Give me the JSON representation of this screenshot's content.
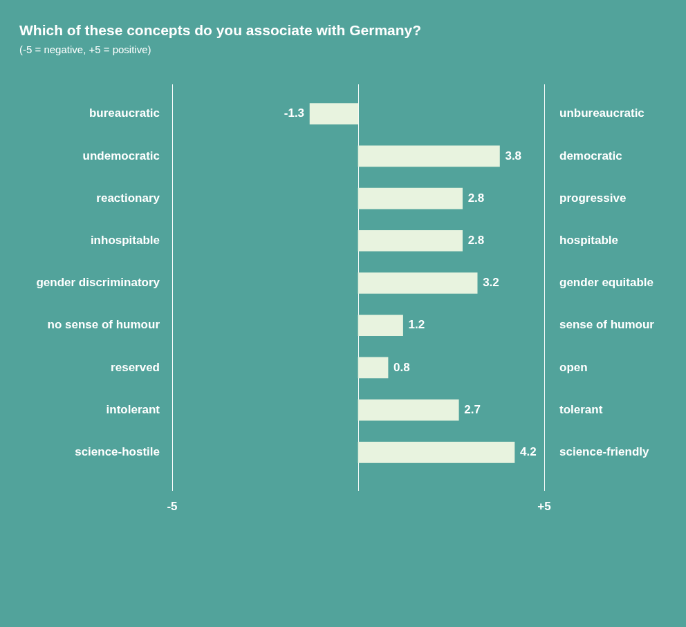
{
  "chart_data": {
    "type": "bar",
    "title": "Which of these concepts do you associate with Germany?",
    "subtitle": "(-5 = negative, +5 = positive)",
    "orientation": "horizontal",
    "categories": [
      "bureaucratic",
      "undemocratic",
      "reactionary",
      "inhospitable",
      "gender discriminatory",
      "no sense of humour",
      "reserved",
      "intolerant",
      "science-hostile"
    ],
    "opposite_categories": [
      "unbureaucratic",
      "democratic",
      "progressive",
      "hospitable",
      "gender equitable",
      "sense of humour",
      "open",
      "tolerant",
      "science-friendly"
    ],
    "values": [
      -1.3,
      3.8,
      2.8,
      2.8,
      3.2,
      1.2,
      0.8,
      2.7,
      4.2
    ],
    "color": "#e8f3df",
    "xlim": [
      -5,
      5
    ],
    "xticks": [
      -5,
      {
        "value": 5,
        "label": "+5"
      }
    ],
    "data_labels": true,
    "grid": true
  }
}
